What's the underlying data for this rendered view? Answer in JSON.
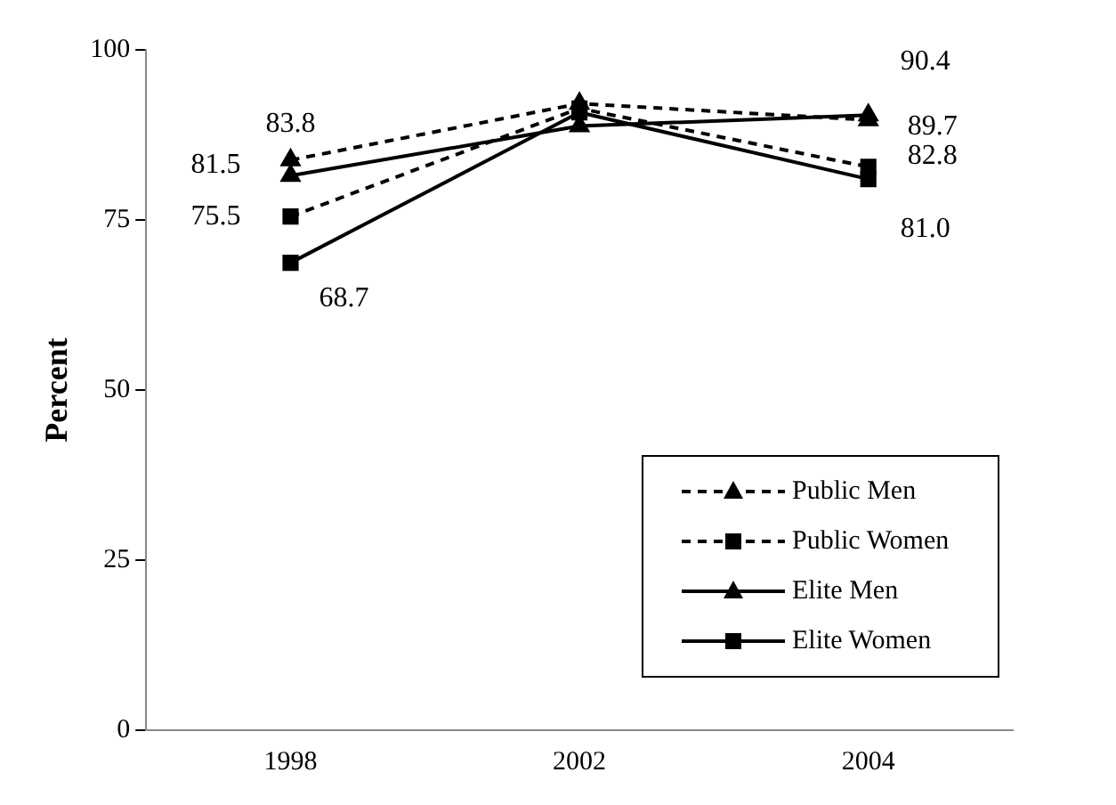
{
  "chart_data": {
    "type": "line",
    "ylabel": "Percent",
    "categories": [
      "1998",
      "2002",
      "2004"
    ],
    "ylim": [
      0,
      100
    ],
    "yticks": [
      0,
      25,
      50,
      75,
      100
    ],
    "grid": false,
    "legend": "bottom right",
    "series": [
      {
        "name": "Public Men",
        "color": "#000000",
        "values": [
          83.8,
          92.1,
          89.7
        ],
        "value_labels": [
          "83.8",
          null,
          "89.7"
        ],
        "marker": "triangle",
        "line_style": "dashed"
      },
      {
        "name": "Public Women",
        "color": "#000000",
        "values": [
          75.5,
          91.4,
          82.8
        ],
        "value_labels": [
          "75.5",
          null,
          "82.8"
        ],
        "marker": "square",
        "line_style": "dashed"
      },
      {
        "name": "Elite Men",
        "color": "#000000",
        "values": [
          81.5,
          88.8,
          90.4
        ],
        "value_labels": [
          "81.5",
          null,
          "90.4"
        ],
        "marker": "triangle",
        "line_style": "solid"
      },
      {
        "name": "Elite Women",
        "color": "#000000",
        "values": [
          68.7,
          90.8,
          81.0
        ],
        "value_labels": [
          "68.7",
          null,
          "81.0"
        ],
        "marker": "square",
        "line_style": "solid"
      }
    ]
  }
}
